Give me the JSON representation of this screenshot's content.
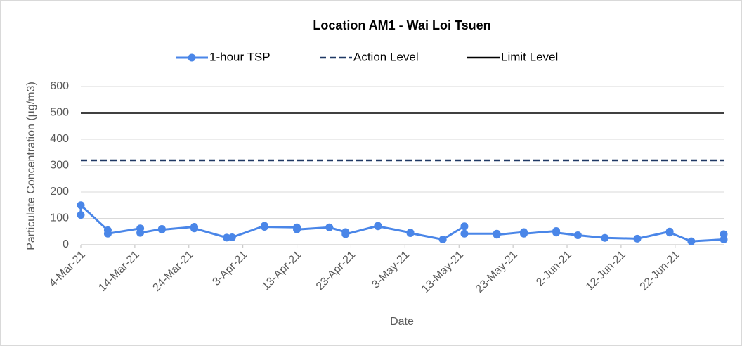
{
  "chart_data": {
    "type": "line",
    "title": "Location AM1 - Wai Loi Tsuen",
    "x_label": "Date",
    "y_label": "Particulate Concentration (µg/m3)",
    "xlim": [
      "2021-03-04",
      "2021-07-01"
    ],
    "xticks": [
      {
        "value": "2021-03-04",
        "label": "4-Mar-21"
      },
      {
        "value": "2021-03-14",
        "label": "14-Mar-21"
      },
      {
        "value": "2021-03-24",
        "label": "24-Mar-21"
      },
      {
        "value": "2021-04-03",
        "label": "3-Apr-21"
      },
      {
        "value": "2021-04-13",
        "label": "13-Apr-21"
      },
      {
        "value": "2021-04-23",
        "label": "23-Apr-21"
      },
      {
        "value": "2021-05-03",
        "label": "3-May-21"
      },
      {
        "value": "2021-05-13",
        "label": "13-May-21"
      },
      {
        "value": "2021-05-23",
        "label": "23-May-21"
      },
      {
        "value": "2021-06-02",
        "label": "2-Jun-21"
      },
      {
        "value": "2021-06-12",
        "label": "12-Jun-21"
      },
      {
        "value": "2021-06-22",
        "label": "22-Jun-21"
      }
    ],
    "ylim": [
      0,
      600
    ],
    "yticks": [
      0,
      100,
      200,
      300,
      400,
      500,
      600
    ],
    "grid": true,
    "legend": "top",
    "series": [
      {
        "name": "1-hour TSP",
        "color": "#4a86e8",
        "x": [
          "2021-03-04",
          "2021-03-04",
          "2021-03-09",
          "2021-03-09",
          "2021-03-15",
          "2021-03-15",
          "2021-03-19",
          "2021-03-19",
          "2021-03-25",
          "2021-03-25",
          "2021-03-31",
          "2021-04-01",
          "2021-04-07",
          "2021-04-07",
          "2021-04-13",
          "2021-04-13",
          "2021-04-19",
          "2021-04-22",
          "2021-04-22",
          "2021-04-28",
          "2021-04-28",
          "2021-05-04",
          "2021-05-04",
          "2021-05-10",
          "2021-05-14",
          "2021-05-14",
          "2021-05-20",
          "2021-05-20",
          "2021-05-25",
          "2021-05-25",
          "2021-05-31",
          "2021-05-31",
          "2021-06-04",
          "2021-06-09",
          "2021-06-15",
          "2021-06-21",
          "2021-06-21",
          "2021-06-25",
          "2021-07-01",
          "2021-07-01"
        ],
        "values": [
          113,
          150,
          55,
          42,
          62,
          45,
          60,
          57,
          68,
          62,
          27,
          28,
          72,
          68,
          66,
          58,
          66,
          48,
          40,
          72,
          70,
          46,
          44,
          20,
          70,
          42,
          42,
          38,
          48,
          42,
          52,
          46,
          36,
          26,
          23,
          50,
          46,
          13,
          20,
          40
        ]
      }
    ],
    "reference_lines": [
      {
        "name": "Action Level",
        "value": 320,
        "color": "#1f3864",
        "dashed": true
      },
      {
        "name": "Limit Level",
        "value": 500,
        "color": "#000000",
        "dashed": false
      }
    ]
  }
}
